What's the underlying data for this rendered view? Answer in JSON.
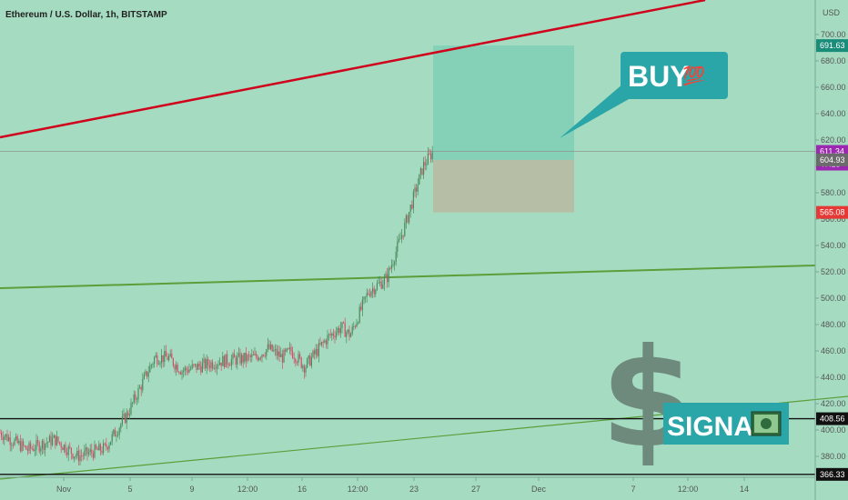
{
  "header": {
    "title": "Ethereum / U.S. Dollar, 1h, BITSTAMP"
  },
  "colors": {
    "background": "#a5dcc1",
    "candle_up": "#4a8a5c",
    "candle_down": "#d84a6a",
    "trend_red": "#d0021b",
    "trend_green": "#5b9e3a",
    "target_zone": "#7ecfb6",
    "stop_zone": "#b8bba2",
    "callout": "#2aa6a8",
    "badge_current": "#9c27b0",
    "badge_target": "#1a8c7a",
    "badge_stop": "#e53935",
    "badge_gray": "#6b6b6b",
    "badge_black": "#111111"
  },
  "chart_data": {
    "type": "candlestick",
    "symbol": "Ethereum / U.S. Dollar",
    "interval": "1h",
    "exchange": "BITSTAMP",
    "currency": "USD",
    "ylim": [
      360,
      720
    ],
    "y_ticks": [
      380,
      400,
      420,
      440,
      460,
      480,
      500,
      520,
      540,
      560,
      580,
      600,
      620,
      640,
      660,
      680,
      700
    ],
    "x_tick_labels": [
      "Nov",
      "5",
      "9",
      "12:00",
      "16",
      "12:00",
      "23",
      "27",
      "Dec",
      "7",
      "12:00",
      "14"
    ],
    "price_path": [
      {
        "date": "Oct 29",
        "price": 398
      },
      {
        "date": "Oct 31",
        "price": 385
      },
      {
        "date": "Nov 2",
        "price": 393
      },
      {
        "date": "Nov 3",
        "price": 380
      },
      {
        "date": "Nov 4",
        "price": 386
      },
      {
        "date": "Nov 5",
        "price": 412
      },
      {
        "date": "Nov 6",
        "price": 455
      },
      {
        "date": "Nov 7",
        "price": 455
      },
      {
        "date": "Nov 8",
        "price": 445
      },
      {
        "date": "Nov 10",
        "price": 452
      },
      {
        "date": "Nov 12",
        "price": 455
      },
      {
        "date": "Nov 13",
        "price": 462
      },
      {
        "date": "Nov 14",
        "price": 455
      },
      {
        "date": "Nov 15",
        "price": 460
      },
      {
        "date": "Nov 17",
        "price": 448
      },
      {
        "date": "Nov 18",
        "price": 470
      },
      {
        "date": "Nov 19",
        "price": 478
      },
      {
        "date": "Nov 20",
        "price": 472
      },
      {
        "date": "Nov 21",
        "price": 505
      },
      {
        "date": "Nov 22",
        "price": 515
      },
      {
        "date": "Nov 23",
        "price": 555
      },
      {
        "date": "Nov 24",
        "price": 600
      },
      {
        "date": "Nov 24",
        "price": 611.34
      }
    ],
    "price_labels": [
      {
        "label": "691.63",
        "kind": "target"
      },
      {
        "label": "611.34",
        "kind": "current"
      },
      {
        "label": "47:13",
        "kind": "countdown"
      },
      {
        "label": "604.93",
        "kind": "entry"
      },
      {
        "label": "565.08",
        "kind": "stop"
      },
      {
        "label": "408.56",
        "kind": "support"
      },
      {
        "label": "366.33",
        "kind": "low"
      }
    ],
    "position": {
      "side": "long",
      "entry": 604.93,
      "target": 691.63,
      "stop": 565.08
    },
    "horizontal_lines": [
      408.56,
      366.33,
      611.34
    ],
    "grid": false,
    "annotations": [
      "BUY",
      "SIGNAL"
    ]
  },
  "overlay": {
    "buy_text": "BUY",
    "buy_emoji": "💯",
    "signal_text": "SIGNAL",
    "dollar_glyph": "$",
    "currency_badge": "USD"
  }
}
